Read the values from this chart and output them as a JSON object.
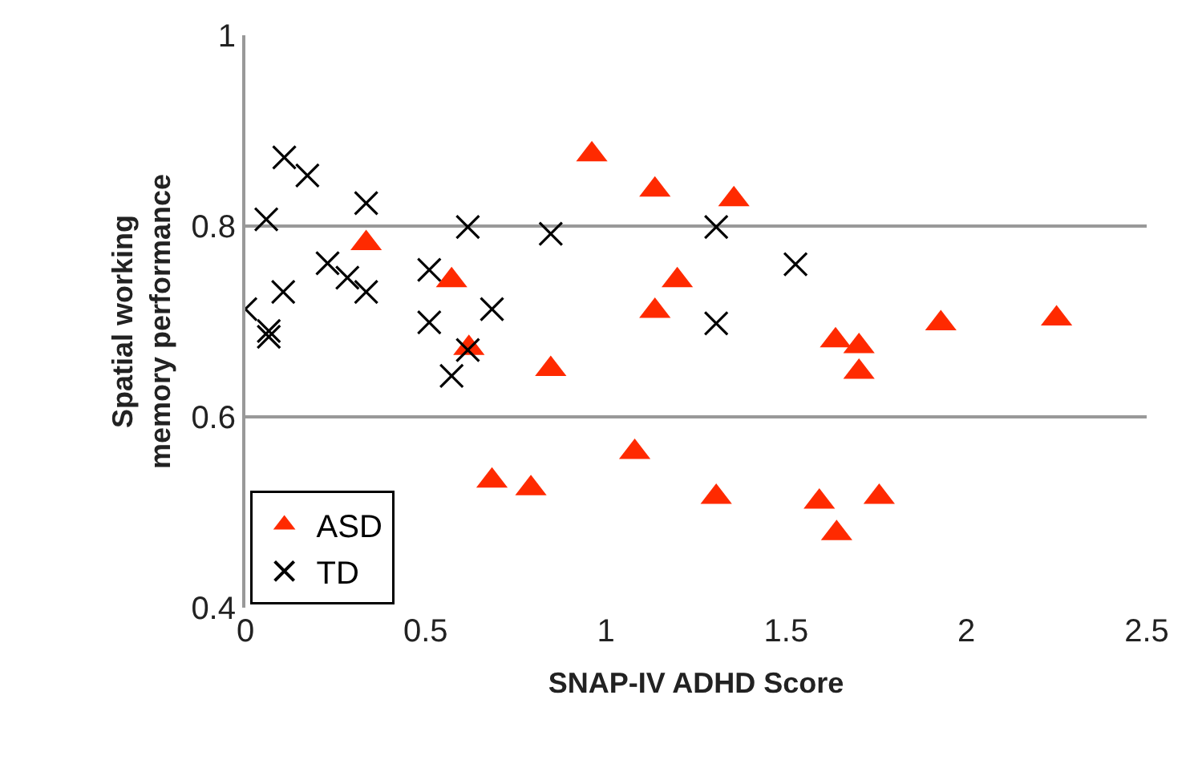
{
  "chart_data": {
    "type": "scatter",
    "xlabel": "SNAP-IV ADHD Score",
    "ylabel": "Spatial working memory performance",
    "xlim": [
      0,
      2.5
    ],
    "xticks": [
      0,
      0.5,
      1,
      1.5,
      2,
      2.5
    ],
    "ylim": [
      0.4,
      1
    ],
    "yticks": [
      0.4,
      0.6,
      0.8,
      1
    ],
    "grid": "y",
    "legend": "bottom left",
    "series": [
      {
        "name": "ASD",
        "color": "#ff2a00",
        "marker": "triangle",
        "x": [
          0.335,
          0.572,
          0.62,
          0.847,
          0.684,
          0.792,
          0.961,
          1.136,
          1.355,
          1.198,
          1.136,
          1.637,
          1.702,
          1.702,
          1.929,
          2.25,
          1.08,
          1.306,
          1.592,
          1.758,
          1.64
        ],
        "values": [
          0.782,
          0.743,
          0.672,
          0.65,
          0.533,
          0.525,
          0.875,
          0.838,
          0.828,
          0.743,
          0.711,
          0.68,
          0.674,
          0.647,
          0.698,
          0.703,
          0.563,
          0.516,
          0.511,
          0.516,
          0.478
        ]
      },
      {
        "name": "TD",
        "color": "#000000",
        "marker": "cross",
        "x": [
          0.108,
          0.172,
          0.335,
          0.058,
          0.617,
          0.847,
          0.228,
          0.283,
          0.335,
          0.105,
          0.51,
          0,
          0.065,
          0.065,
          0.684,
          0.51,
          0.617,
          0.572,
          1.306,
          1.526,
          1.306
        ],
        "values": [
          0.872,
          0.853,
          0.824,
          0.807,
          0.799,
          0.792,
          0.761,
          0.746,
          0.731,
          0.731,
          0.754,
          0.713,
          0.69,
          0.684,
          0.713,
          0.699,
          0.67,
          0.643,
          0.799,
          0.76,
          0.698
        ]
      }
    ]
  }
}
